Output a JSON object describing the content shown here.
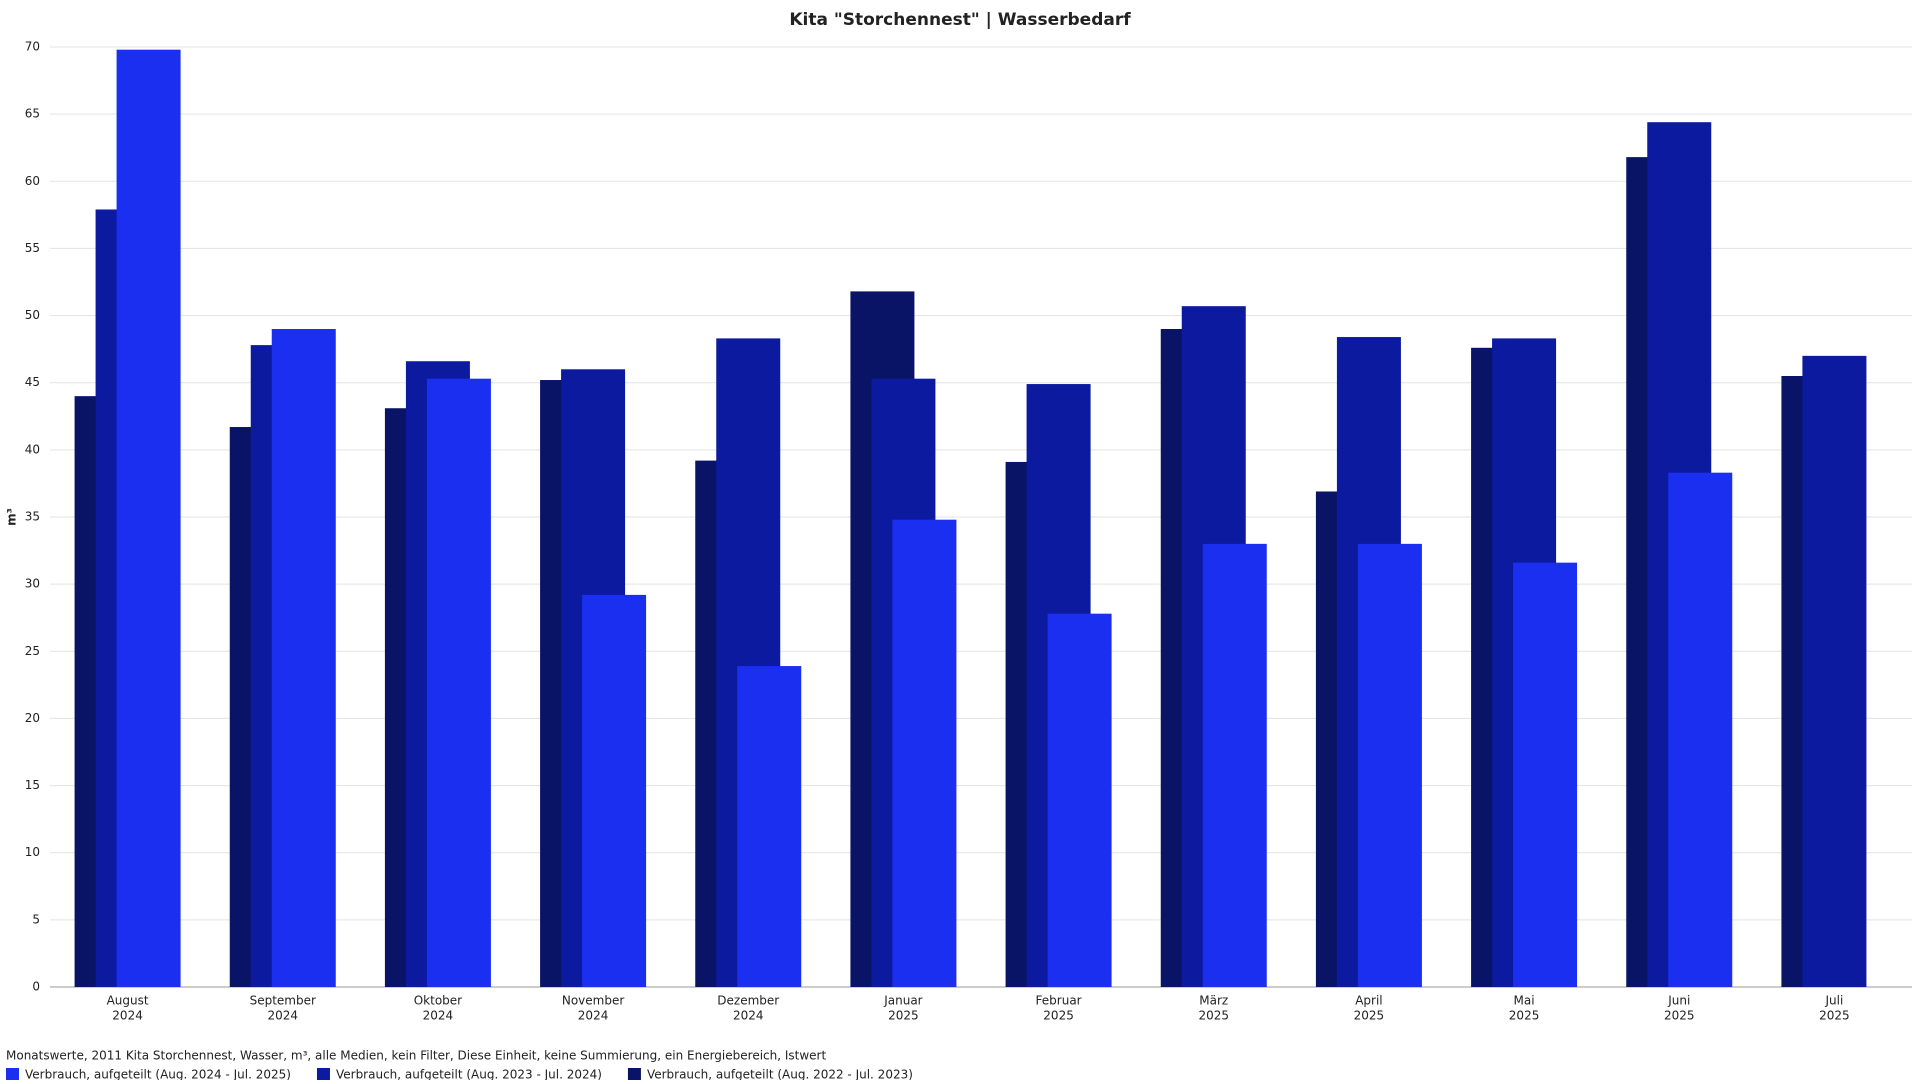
{
  "chart_data": {
    "type": "bar",
    "title": "Kita \"Storchennest\" | Wasserbedarf",
    "y_label": "m³",
    "footnote": "Monatswerte, 2011 Kita Storchennest, Wasser, m³, alle Medien, kein Filter, Diese Einheit, keine Summierung, ein Energiebereich, Istwert",
    "categories": [
      [
        "August",
        "2024"
      ],
      [
        "September",
        "2024"
      ],
      [
        "Oktober",
        "2024"
      ],
      [
        "November",
        "2024"
      ],
      [
        "Dezember",
        "2024"
      ],
      [
        "Januar",
        "2025"
      ],
      [
        "Februar",
        "2025"
      ],
      [
        "März",
        "2025"
      ],
      [
        "April",
        "2025"
      ],
      [
        "Mai",
        "2025"
      ],
      [
        "Juni",
        "2025"
      ],
      [
        "Juli",
        "2025"
      ]
    ],
    "series": [
      {
        "name": "Verbrauch, aufgeteilt (Aug. 2024 - Jul. 2025)",
        "color": "#1a2ff0",
        "values": [
          69.8,
          49,
          45.3,
          29.2,
          23.9,
          34.8,
          27.8,
          33,
          33,
          31.6,
          38.3,
          null
        ]
      },
      {
        "name": "Verbrauch, aufgeteilt (Aug. 2023 - Jul. 2024)",
        "color": "#0b1a9e",
        "values": [
          57.9,
          47.8,
          46.6,
          46,
          48.3,
          45.3,
          44.9,
          50.7,
          48.4,
          48.3,
          64.4,
          47
        ]
      },
      {
        "name": "Verbrauch, aufgeteilt (Aug. 2022 - Jul. 2023)",
        "color": "#0a1466",
        "values": [
          44,
          41.7,
          43.1,
          45.2,
          39.2,
          51.8,
          39.1,
          49,
          36.9,
          47.6,
          61.8,
          45.5
        ]
      }
    ],
    "ylim": [
      0,
      70
    ],
    "yticks": [
      0,
      5,
      10,
      15,
      20,
      25,
      30,
      35,
      40,
      45,
      50,
      55,
      60,
      65,
      70
    ],
    "grid": true
  }
}
